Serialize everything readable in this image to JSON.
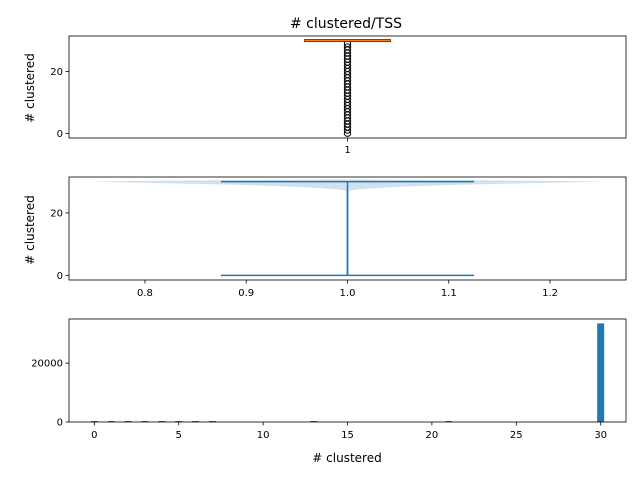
{
  "figure_title": "# clustered/TSS",
  "colors": {
    "blue": "#1f77b4",
    "orange": "#ff7f0e",
    "violin_fill": "#b3cde3",
    "text": "#000000"
  },
  "chart_data": [
    {
      "type": "box",
      "title": "# clustered/TSS",
      "ylabel": "# clustered",
      "xlabel": "",
      "categories": [
        "1"
      ],
      "ylim": [
        -1.5,
        31.5
      ],
      "yticks": [
        0,
        20
      ],
      "xticks": [
        "1"
      ],
      "box": {
        "median": 30,
        "q1": 30,
        "q3": 30,
        "whisker_low": 30,
        "whisker_high": 30
      },
      "outliers": [
        0,
        1,
        2,
        3,
        4,
        5,
        6,
        7,
        8,
        9,
        10,
        11,
        12,
        13,
        14,
        15,
        16,
        17,
        18,
        19,
        20,
        21,
        22,
        23,
        24,
        25,
        26,
        27,
        28,
        29
      ]
    },
    {
      "type": "violin",
      "ylabel": "# clustered",
      "xlabel": "",
      "x_position": 1.0,
      "xlim": [
        0.725,
        1.275
      ],
      "ylim": [
        -1.5,
        31.5
      ],
      "xticks": [
        0.8,
        0.9,
        1.0,
        1.1,
        1.2
      ],
      "xtick_labels": [
        "0.8",
        "0.9",
        "1.0",
        "1.1",
        "1.2"
      ],
      "yticks": [
        0,
        20
      ],
      "min": 0,
      "max": 30,
      "cap_halfwidth": 0.125
    },
    {
      "type": "bar",
      "ylabel": "",
      "xlabel": "# clustered",
      "xlim": [
        -1.5,
        31.5
      ],
      "ylim": [
        0,
        35000
      ],
      "xticks": [
        0,
        5,
        10,
        15,
        20,
        25,
        30
      ],
      "yticks": [
        0,
        20000
      ],
      "bins": [
        {
          "x": 0,
          "value": 80
        },
        {
          "x": 1,
          "value": 60
        },
        {
          "x": 2,
          "value": 50
        },
        {
          "x": 3,
          "value": 40
        },
        {
          "x": 4,
          "value": 40
        },
        {
          "x": 5,
          "value": 40
        },
        {
          "x": 6,
          "value": 30
        },
        {
          "x": 7,
          "value": 30
        },
        {
          "x": 13,
          "value": 20
        },
        {
          "x": 21,
          "value": 20
        },
        {
          "x": 30,
          "value": 33500
        }
      ]
    }
  ]
}
